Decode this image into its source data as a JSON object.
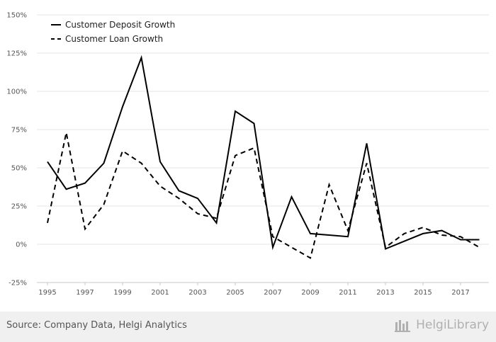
{
  "chart_data": {
    "type": "line",
    "x": [
      1995,
      1996,
      1997,
      1998,
      1999,
      2000,
      2001,
      2002,
      2003,
      2004,
      2005,
      2006,
      2007,
      2008,
      2009,
      2010,
      2011,
      2012,
      2013,
      2014,
      2015,
      2016,
      2017,
      2018
    ],
    "series": [
      {
        "name": "Customer Deposit Growth",
        "style": "solid",
        "color": "#000000",
        "values": [
          54,
          36,
          40,
          53,
          90,
          122,
          54,
          35,
          30,
          14,
          87,
          79,
          -2,
          31,
          7,
          6,
          5,
          66,
          -3,
          2,
          7,
          9,
          3,
          3
        ]
      },
      {
        "name": "Customer Loan Growth",
        "style": "dashed",
        "color": "#000000",
        "values": [
          14,
          73,
          10,
          26,
          61,
          53,
          38,
          30,
          20,
          17,
          58,
          63,
          5,
          -2,
          -9,
          39,
          9,
          53,
          -2,
          7,
          11,
          6,
          5,
          -2
        ]
      }
    ],
    "ylim": [
      -25,
      150
    ],
    "yticks": [
      "-25%",
      "0%",
      "25%",
      "50%",
      "75%",
      "100%",
      "125%",
      "150%"
    ],
    "ytick_values": [
      -25,
      0,
      25,
      50,
      75,
      100,
      125,
      150
    ],
    "xticks": [
      "1995",
      "1997",
      "1999",
      "2001",
      "2003",
      "2005",
      "2007",
      "2009",
      "2011",
      "2013",
      "2015",
      "2017"
    ],
    "grid": true,
    "legend": "top-left"
  },
  "footer": {
    "source": "Source: Company Data, Helgi Analytics",
    "brand": "HelgiLibrary"
  },
  "colors": {
    "grid": "#e6e6e6",
    "footer_bg": "#f0f0f0",
    "text": "#555555"
  }
}
